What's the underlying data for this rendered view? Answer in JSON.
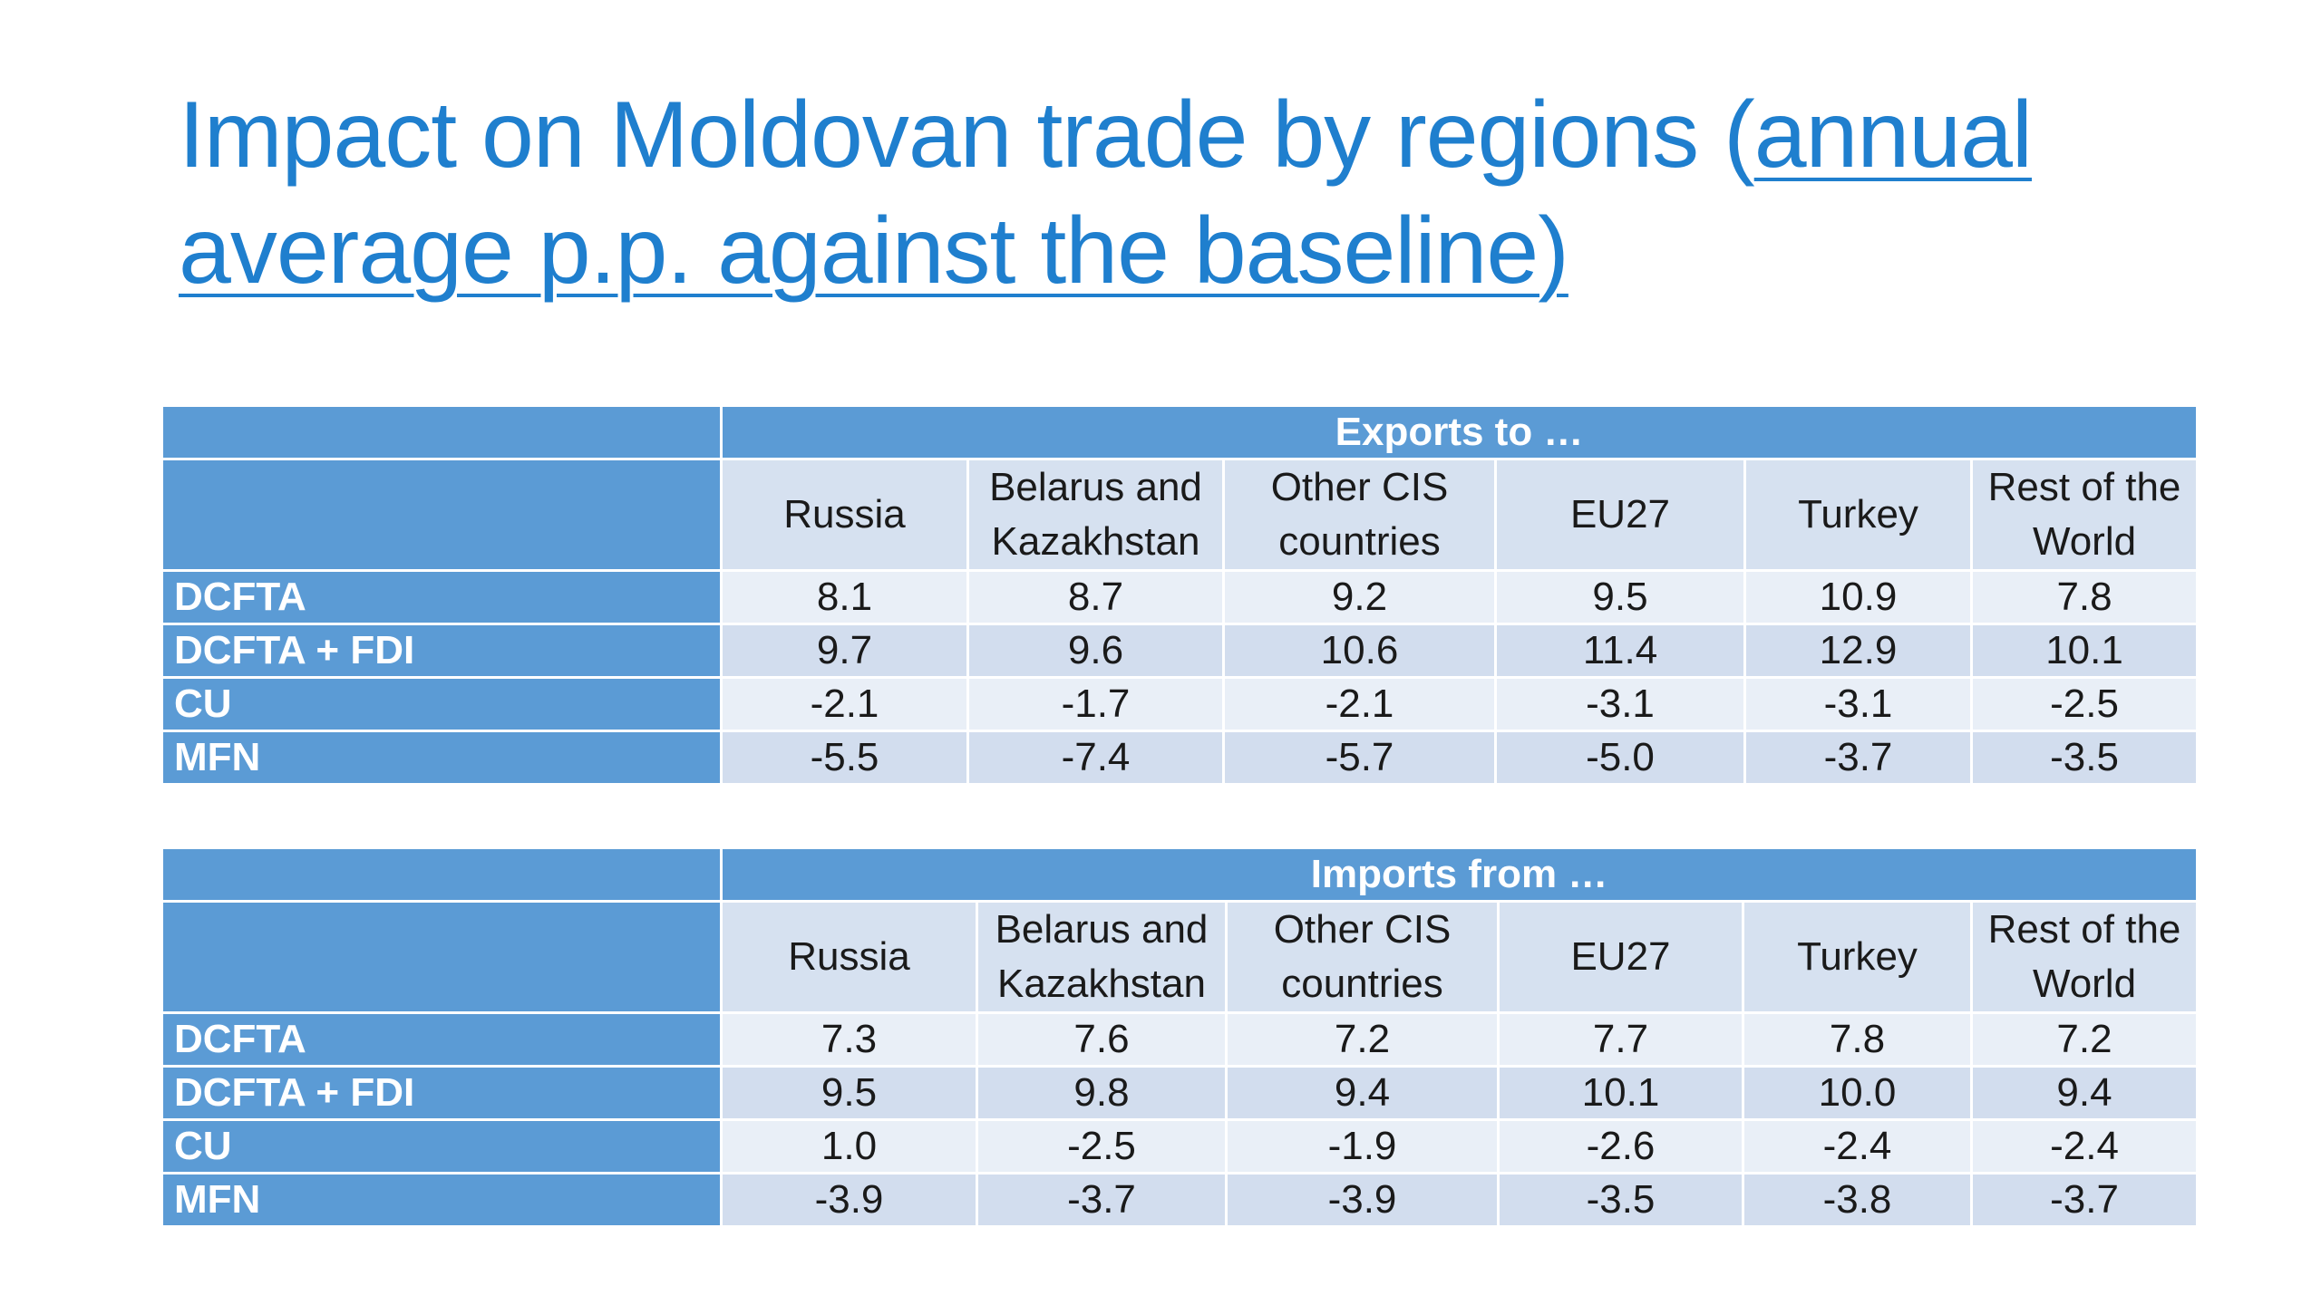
{
  "title": {
    "plain": "Impact on Moldovan trade by regions (",
    "underlined_1": "annual",
    "underlined_2": "average p.p. against the baseline)"
  },
  "columns": [
    {
      "line1": "Russia",
      "line2": ""
    },
    {
      "line1": "Belarus and",
      "line2": "Kazakhstan"
    },
    {
      "line1": "Other CIS",
      "line2": "countries"
    },
    {
      "line1": "EU27",
      "line2": ""
    },
    {
      "line1": "Turkey",
      "line2": ""
    },
    {
      "line1": "Rest of the",
      "line2": "World"
    }
  ],
  "exports": {
    "header": "Exports to …",
    "rows": [
      {
        "label": "DCFTA",
        "values": [
          "8.1",
          "8.7",
          "9.2",
          "9.5",
          "10.9",
          "7.8"
        ]
      },
      {
        "label": "DCFTA + FDI",
        "values": [
          "9.7",
          "9.6",
          "10.6",
          "11.4",
          "12.9",
          "10.1"
        ]
      },
      {
        "label": "CU",
        "values": [
          "-2.1",
          "-1.7",
          "-2.1",
          "-3.1",
          "-3.1",
          "-2.5"
        ]
      },
      {
        "label": "MFN",
        "values": [
          "-5.5",
          "-7.4",
          "-5.7",
          "-5.0",
          "-3.7",
          "-3.5"
        ]
      }
    ]
  },
  "imports": {
    "header": "Imports from …",
    "rows": [
      {
        "label": "DCFTA",
        "values": [
          "7.3",
          "7.6",
          "7.2",
          "7.7",
          "7.8",
          "7.2"
        ]
      },
      {
        "label": "DCFTA + FDI",
        "values": [
          "9.5",
          "9.8",
          "9.4",
          "10.1",
          "10.0",
          "9.4"
        ]
      },
      {
        "label": "CU",
        "values": [
          "1.0",
          "-2.5",
          "-1.9",
          "-2.6",
          "-2.4",
          "-2.4"
        ]
      },
      {
        "label": "MFN",
        "values": [
          "-3.9",
          "-3.7",
          "-3.9",
          "-3.5",
          "-3.8",
          "-3.7"
        ]
      }
    ]
  },
  "colors": {
    "title": "#1f7fce",
    "header_blue": "#5b9bd5",
    "col_header_bg": "#d6e1f0",
    "row_light": "#e9eff7",
    "row_dark": "#d2ddee"
  }
}
